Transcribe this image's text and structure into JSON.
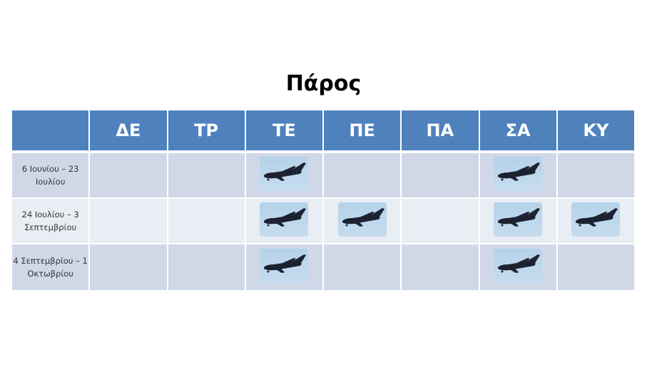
{
  "title": "Πάρος",
  "days": [
    "ΔΕ",
    "ΤΡ",
    "ΤΕ",
    "ΠΕ",
    "ΠΑ",
    "ΣΑ",
    "ΚΥ"
  ],
  "rows": [
    {
      "period": "6 Ιουνίου – 23 Ιουλίου",
      "flights": [
        false,
        false,
        true,
        false,
        false,
        true,
        false
      ]
    },
    {
      "period": "24 Ιουλίου – 3 Σεπτεμβρίου",
      "flights": [
        false,
        false,
        true,
        true,
        false,
        true,
        true
      ]
    },
    {
      "period": "4 Σεπτεμβρίου – 1 Οκτωβρίου",
      "flights": [
        false,
        false,
        true,
        false,
        false,
        true,
        false
      ]
    }
  ],
  "icon": "airplane-photo",
  "colors": {
    "header": "#4f81bd",
    "row_dark": "#d0d8e8",
    "row_light": "#e9edf4"
  }
}
